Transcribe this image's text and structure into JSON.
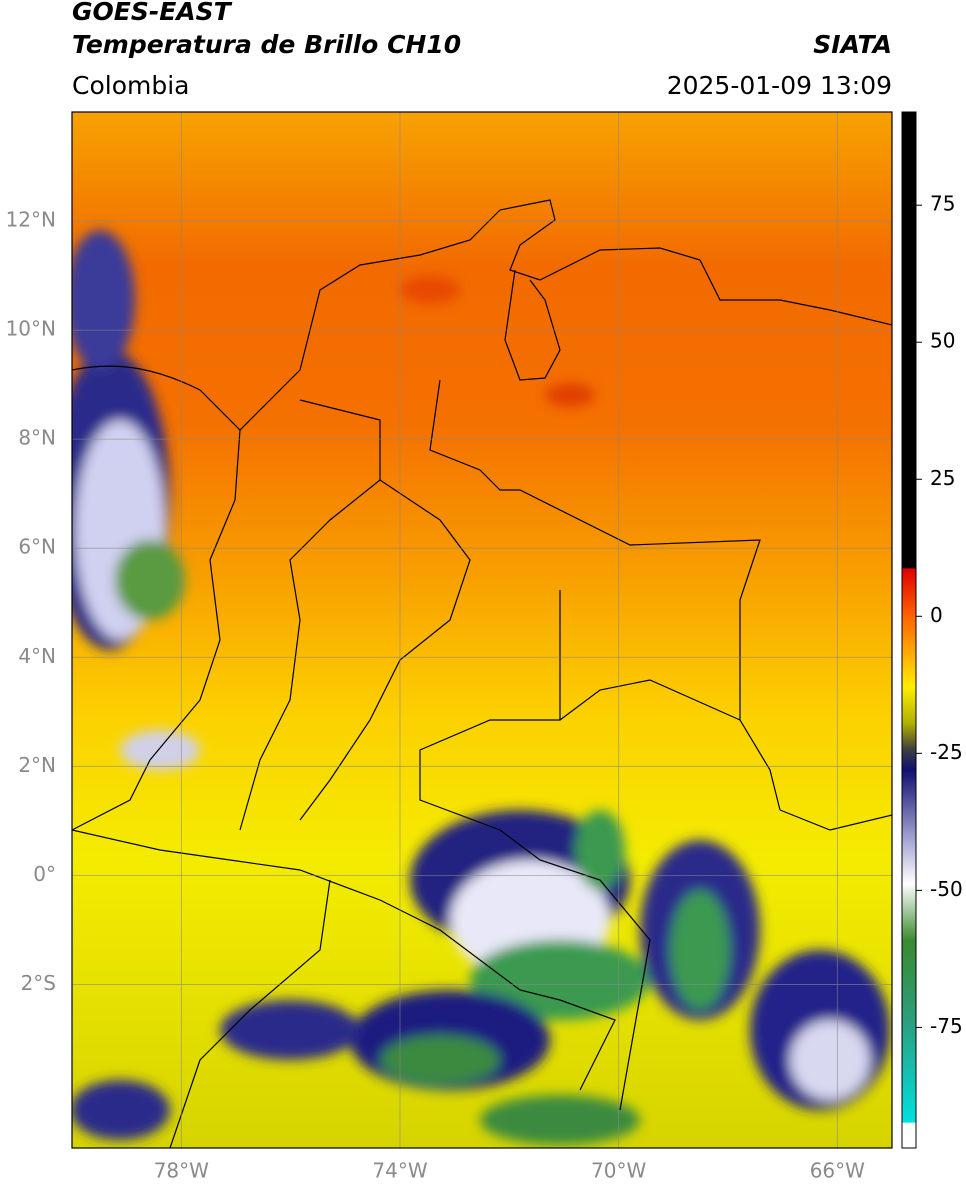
{
  "header": {
    "title": "GOES-EAST",
    "subtitle": "Temperatura de Brillo CH10",
    "source": "SIATA",
    "region": "Colombia",
    "timestamp": "2025-01-09 13:09"
  },
  "map": {
    "lonlim": [
      -80,
      -65
    ],
    "latlim": [
      -5,
      14
    ],
    "lonticks": [
      {
        "value": -78,
        "label": "78°W"
      },
      {
        "value": -74,
        "label": "74°W"
      },
      {
        "value": -70,
        "label": "70°W"
      },
      {
        "value": -66,
        "label": "66°W"
      }
    ],
    "latticks": [
      {
        "value": 12,
        "label": "12°N"
      },
      {
        "value": 10,
        "label": "10°N"
      },
      {
        "value": 8,
        "label": "8°N"
      },
      {
        "value": 6,
        "label": "6°N"
      },
      {
        "value": 4,
        "label": "4°N"
      },
      {
        "value": 2,
        "label": "2°N"
      },
      {
        "value": 0,
        "label": "0°"
      },
      {
        "value": -2,
        "label": "2°S"
      }
    ],
    "grid": true
  },
  "colorbar": {
    "lim": [
      -97,
      92
    ],
    "ticks": [
      75,
      50,
      25,
      0,
      -25,
      -50,
      -75
    ]
  }
}
